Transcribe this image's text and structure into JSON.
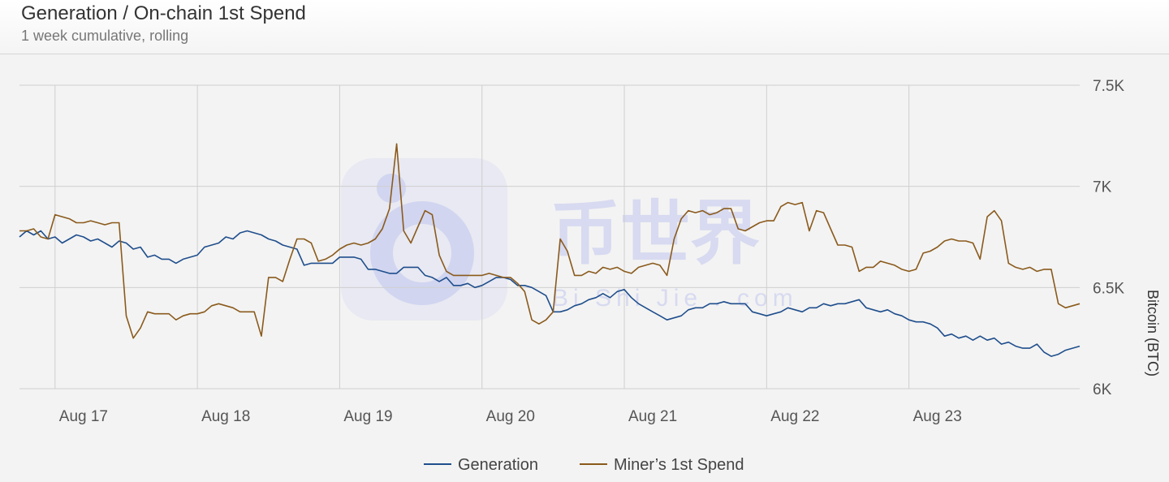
{
  "header": {
    "title": "Generation / On-chain 1st Spend",
    "subtitle": "1 week cumulative, rolling"
  },
  "watermark": {
    "text": "币世界",
    "sub": "Bi Shi Jie . com"
  },
  "colors": {
    "generation": "#1f4e8c",
    "spend": "#8a5a1c",
    "grid": "#cfcfcf",
    "watermark": "#6a78e8"
  },
  "chart_data": {
    "type": "line",
    "title": "Generation / On-chain 1st Spend",
    "subtitle": "1 week cumulative, rolling",
    "ylabel": "Bitcoin (BTC)",
    "xlabel": "",
    "ylim": [
      6000,
      7500
    ],
    "y_ticks": [
      6000,
      6500,
      7000,
      7500
    ],
    "y_tick_labels": [
      "6K",
      "6.5K",
      "7K",
      "7.5K"
    ],
    "x_range_days": [
      16.55,
      23.15
    ],
    "x_ticks": [
      17,
      18,
      19,
      20,
      21,
      22,
      23
    ],
    "x_tick_labels": [
      "Aug 17",
      "Aug 18",
      "Aug 19",
      "Aug 20",
      "Aug 21",
      "Aug 22",
      "Aug 23"
    ],
    "vertical_grid_days": [
      16.8,
      17.8,
      18.8,
      19.8,
      20.8,
      21.8,
      22.8
    ],
    "legend_position": "bottom-center",
    "series": [
      {
        "name": "Generation",
        "color": "#1f4e8c",
        "points": [
          [
            16.55,
            6750
          ],
          [
            16.6,
            6780
          ],
          [
            16.65,
            6760
          ],
          [
            16.7,
            6780
          ],
          [
            16.75,
            6740
          ],
          [
            16.8,
            6750
          ],
          [
            16.85,
            6720
          ],
          [
            16.9,
            6740
          ],
          [
            16.95,
            6760
          ],
          [
            17.0,
            6750
          ],
          [
            17.05,
            6730
          ],
          [
            17.1,
            6740
          ],
          [
            17.15,
            6720
          ],
          [
            17.2,
            6700
          ],
          [
            17.25,
            6730
          ],
          [
            17.3,
            6720
          ],
          [
            17.35,
            6690
          ],
          [
            17.4,
            6700
          ],
          [
            17.45,
            6650
          ],
          [
            17.5,
            6660
          ],
          [
            17.55,
            6640
          ],
          [
            17.6,
            6640
          ],
          [
            17.65,
            6620
          ],
          [
            17.7,
            6640
          ],
          [
            17.75,
            6650
          ],
          [
            17.8,
            6660
          ],
          [
            17.85,
            6700
          ],
          [
            17.9,
            6710
          ],
          [
            17.95,
            6720
          ],
          [
            18.0,
            6750
          ],
          [
            18.05,
            6740
          ],
          [
            18.1,
            6770
          ],
          [
            18.15,
            6780
          ],
          [
            18.2,
            6770
          ],
          [
            18.25,
            6760
          ],
          [
            18.3,
            6740
          ],
          [
            18.35,
            6730
          ],
          [
            18.4,
            6710
          ],
          [
            18.45,
            6700
          ],
          [
            18.5,
            6690
          ],
          [
            18.55,
            6610
          ],
          [
            18.6,
            6620
          ],
          [
            18.65,
            6620
          ],
          [
            18.7,
            6620
          ],
          [
            18.75,
            6620
          ],
          [
            18.8,
            6650
          ],
          [
            18.85,
            6650
          ],
          [
            18.9,
            6650
          ],
          [
            18.95,
            6640
          ],
          [
            19.0,
            6590
          ],
          [
            19.05,
            6590
          ],
          [
            19.1,
            6580
          ],
          [
            19.15,
            6570
          ],
          [
            19.2,
            6570
          ],
          [
            19.25,
            6600
          ],
          [
            19.3,
            6600
          ],
          [
            19.35,
            6600
          ],
          [
            19.4,
            6560
          ],
          [
            19.45,
            6550
          ],
          [
            19.5,
            6530
          ],
          [
            19.55,
            6550
          ],
          [
            19.6,
            6510
          ],
          [
            19.65,
            6510
          ],
          [
            19.7,
            6520
          ],
          [
            19.75,
            6500
          ],
          [
            19.8,
            6510
          ],
          [
            19.85,
            6530
          ],
          [
            19.9,
            6550
          ],
          [
            19.95,
            6550
          ],
          [
            20.0,
            6540
          ],
          [
            20.05,
            6510
          ],
          [
            20.1,
            6510
          ],
          [
            20.15,
            6500
          ],
          [
            20.2,
            6480
          ],
          [
            20.25,
            6460
          ],
          [
            20.3,
            6380
          ],
          [
            20.35,
            6380
          ],
          [
            20.4,
            6390
          ],
          [
            20.45,
            6410
          ],
          [
            20.5,
            6420
          ],
          [
            20.55,
            6440
          ],
          [
            20.6,
            6450
          ],
          [
            20.65,
            6470
          ],
          [
            20.7,
            6450
          ],
          [
            20.75,
            6480
          ],
          [
            20.8,
            6490
          ],
          [
            20.85,
            6450
          ],
          [
            20.9,
            6420
          ],
          [
            20.95,
            6400
          ],
          [
            21.0,
            6380
          ],
          [
            21.05,
            6360
          ],
          [
            21.1,
            6340
          ],
          [
            21.15,
            6350
          ],
          [
            21.2,
            6360
          ],
          [
            21.25,
            6390
          ],
          [
            21.3,
            6400
          ],
          [
            21.35,
            6400
          ],
          [
            21.4,
            6420
          ],
          [
            21.45,
            6420
          ],
          [
            21.5,
            6430
          ],
          [
            21.55,
            6420
          ],
          [
            21.6,
            6420
          ],
          [
            21.65,
            6420
          ],
          [
            21.7,
            6380
          ],
          [
            21.75,
            6370
          ],
          [
            21.8,
            6360
          ],
          [
            21.85,
            6370
          ],
          [
            21.9,
            6380
          ],
          [
            21.95,
            6400
          ],
          [
            22.0,
            6390
          ],
          [
            22.05,
            6380
          ],
          [
            22.1,
            6400
          ],
          [
            22.15,
            6400
          ],
          [
            22.2,
            6420
          ],
          [
            22.25,
            6410
          ],
          [
            22.3,
            6420
          ],
          [
            22.35,
            6420
          ],
          [
            22.4,
            6430
          ],
          [
            22.45,
            6440
          ],
          [
            22.5,
            6400
          ],
          [
            22.55,
            6390
          ],
          [
            22.6,
            6380
          ],
          [
            22.65,
            6390
          ],
          [
            22.7,
            6370
          ],
          [
            22.75,
            6360
          ],
          [
            22.8,
            6340
          ],
          [
            22.85,
            6330
          ],
          [
            22.9,
            6330
          ],
          [
            22.95,
            6320
          ],
          [
            23.0,
            6300
          ],
          [
            23.05,
            6260
          ],
          [
            23.1,
            6270
          ],
          [
            23.15,
            6250
          ],
          [
            23.2,
            6260
          ],
          [
            23.25,
            6240
          ],
          [
            23.3,
            6260
          ],
          [
            23.35,
            6240
          ],
          [
            23.4,
            6250
          ],
          [
            23.45,
            6220
          ],
          [
            23.5,
            6230
          ],
          [
            23.55,
            6210
          ],
          [
            23.6,
            6200
          ],
          [
            23.65,
            6200
          ],
          [
            23.7,
            6220
          ],
          [
            23.75,
            6180
          ],
          [
            23.8,
            6160
          ],
          [
            23.85,
            6170
          ],
          [
            23.9,
            6190
          ],
          [
            23.95,
            6200
          ],
          [
            24.0,
            6210
          ]
        ]
      },
      {
        "name": "Miner’s 1st Spend",
        "color": "#8a5a1c",
        "points": [
          [
            16.55,
            6780
          ],
          [
            16.6,
            6780
          ],
          [
            16.65,
            6790
          ],
          [
            16.7,
            6750
          ],
          [
            16.75,
            6740
          ],
          [
            16.8,
            6860
          ],
          [
            16.85,
            6850
          ],
          [
            16.9,
            6840
          ],
          [
            16.95,
            6820
          ],
          [
            17.0,
            6820
          ],
          [
            17.05,
            6830
          ],
          [
            17.1,
            6820
          ],
          [
            17.15,
            6810
          ],
          [
            17.2,
            6820
          ],
          [
            17.25,
            6820
          ],
          [
            17.3,
            6360
          ],
          [
            17.35,
            6250
          ],
          [
            17.4,
            6300
          ],
          [
            17.45,
            6380
          ],
          [
            17.5,
            6370
          ],
          [
            17.55,
            6370
          ],
          [
            17.6,
            6370
          ],
          [
            17.65,
            6340
          ],
          [
            17.7,
            6360
          ],
          [
            17.75,
            6370
          ],
          [
            17.8,
            6370
          ],
          [
            17.85,
            6380
          ],
          [
            17.9,
            6410
          ],
          [
            17.95,
            6420
          ],
          [
            18.0,
            6410
          ],
          [
            18.05,
            6400
          ],
          [
            18.1,
            6380
          ],
          [
            18.15,
            6380
          ],
          [
            18.2,
            6380
          ],
          [
            18.25,
            6260
          ],
          [
            18.3,
            6550
          ],
          [
            18.35,
            6550
          ],
          [
            18.4,
            6530
          ],
          [
            18.45,
            6640
          ],
          [
            18.5,
            6740
          ],
          [
            18.55,
            6740
          ],
          [
            18.6,
            6720
          ],
          [
            18.65,
            6630
          ],
          [
            18.7,
            6640
          ],
          [
            18.75,
            6660
          ],
          [
            18.8,
            6690
          ],
          [
            18.85,
            6710
          ],
          [
            18.9,
            6720
          ],
          [
            18.95,
            6710
          ],
          [
            19.0,
            6720
          ],
          [
            19.05,
            6740
          ],
          [
            19.1,
            6790
          ],
          [
            19.15,
            6890
          ],
          [
            19.2,
            7210
          ],
          [
            19.25,
            6780
          ],
          [
            19.3,
            6720
          ],
          [
            19.35,
            6800
          ],
          [
            19.4,
            6880
          ],
          [
            19.45,
            6860
          ],
          [
            19.5,
            6660
          ],
          [
            19.55,
            6580
          ],
          [
            19.6,
            6560
          ],
          [
            19.65,
            6560
          ],
          [
            19.7,
            6560
          ],
          [
            19.75,
            6560
          ],
          [
            19.8,
            6560
          ],
          [
            19.85,
            6570
          ],
          [
            19.9,
            6560
          ],
          [
            19.95,
            6550
          ],
          [
            20.0,
            6550
          ],
          [
            20.05,
            6520
          ],
          [
            20.1,
            6480
          ],
          [
            20.15,
            6340
          ],
          [
            20.2,
            6320
          ],
          [
            20.25,
            6340
          ],
          [
            20.3,
            6380
          ],
          [
            20.35,
            6740
          ],
          [
            20.4,
            6680
          ],
          [
            20.45,
            6560
          ],
          [
            20.5,
            6560
          ],
          [
            20.55,
            6580
          ],
          [
            20.6,
            6570
          ],
          [
            20.65,
            6600
          ],
          [
            20.7,
            6590
          ],
          [
            20.75,
            6600
          ],
          [
            20.8,
            6580
          ],
          [
            20.85,
            6570
          ],
          [
            20.9,
            6600
          ],
          [
            20.95,
            6610
          ],
          [
            21.0,
            6620
          ],
          [
            21.05,
            6610
          ],
          [
            21.1,
            6560
          ],
          [
            21.15,
            6740
          ],
          [
            21.2,
            6840
          ],
          [
            21.25,
            6880
          ],
          [
            21.3,
            6870
          ],
          [
            21.35,
            6880
          ],
          [
            21.4,
            6860
          ],
          [
            21.45,
            6870
          ],
          [
            21.5,
            6890
          ],
          [
            21.55,
            6890
          ],
          [
            21.6,
            6790
          ],
          [
            21.65,
            6780
          ],
          [
            21.7,
            6800
          ],
          [
            21.75,
            6820
          ],
          [
            21.8,
            6830
          ],
          [
            21.85,
            6830
          ],
          [
            21.9,
            6900
          ],
          [
            21.95,
            6920
          ],
          [
            22.0,
            6910
          ],
          [
            22.05,
            6920
          ],
          [
            22.1,
            6780
          ],
          [
            22.15,
            6880
          ],
          [
            22.2,
            6870
          ],
          [
            22.25,
            6790
          ],
          [
            22.3,
            6710
          ],
          [
            22.35,
            6710
          ],
          [
            22.4,
            6700
          ],
          [
            22.45,
            6580
          ],
          [
            22.5,
            6600
          ],
          [
            22.55,
            6600
          ],
          [
            22.6,
            6630
          ],
          [
            22.65,
            6620
          ],
          [
            22.7,
            6610
          ],
          [
            22.75,
            6590
          ],
          [
            22.8,
            6580
          ],
          [
            22.85,
            6590
          ],
          [
            22.9,
            6670
          ],
          [
            22.95,
            6680
          ],
          [
            23.0,
            6700
          ],
          [
            23.05,
            6730
          ],
          [
            23.1,
            6740
          ],
          [
            23.15,
            6730
          ],
          [
            23.2,
            6730
          ],
          [
            23.25,
            6720
          ],
          [
            23.3,
            6640
          ],
          [
            23.35,
            6850
          ],
          [
            23.4,
            6880
          ],
          [
            23.45,
            6830
          ],
          [
            23.5,
            6620
          ],
          [
            23.55,
            6600
          ],
          [
            23.6,
            6590
          ],
          [
            23.65,
            6600
          ],
          [
            23.7,
            6580
          ],
          [
            23.75,
            6590
          ],
          [
            23.8,
            6590
          ],
          [
            23.85,
            6420
          ],
          [
            23.9,
            6400
          ],
          [
            23.95,
            6410
          ],
          [
            24.0,
            6420
          ]
        ]
      }
    ]
  }
}
